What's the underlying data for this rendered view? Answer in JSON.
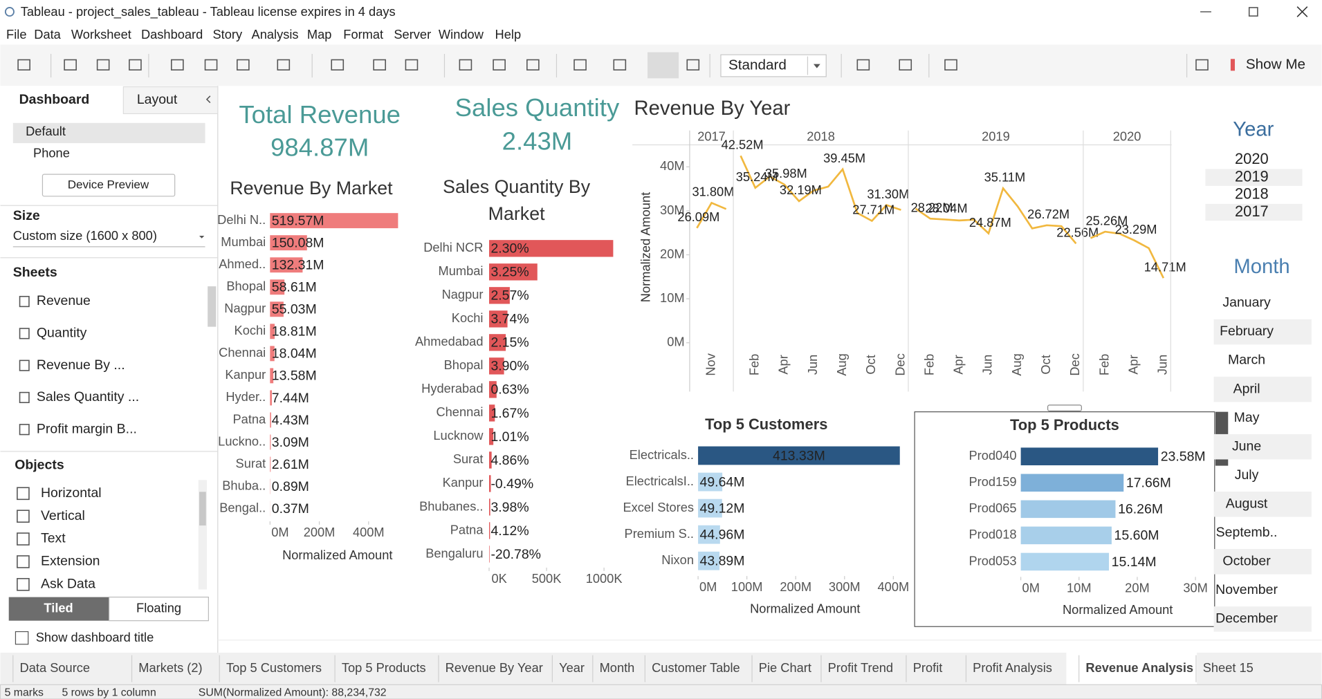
{
  "window": {
    "title": "Tableau - project_sales_tableau - Tableau license expires in 4 days"
  },
  "menu": [
    "File",
    "Data",
    "Worksheet",
    "Dashboard",
    "Story",
    "Analysis",
    "Map",
    "Format",
    "Server",
    "Window",
    "Help"
  ],
  "toolbar": {
    "fit": "Standard",
    "show_me": "Show Me"
  },
  "sidebar": {
    "tabs": [
      "Dashboard",
      "Layout"
    ],
    "devices": [
      "Default",
      "Phone"
    ],
    "device_preview": "Device Preview",
    "size_heading": "Size",
    "size": "Custom size (1600 x 800)",
    "sheets_heading": "Sheets",
    "sheets": [
      "Revenue",
      "Quantity",
      "Revenue By ...",
      "Sales Quantity ...",
      "Profit margin B..."
    ],
    "objects_heading": "Objects",
    "objects": [
      "Horizontal",
      "Vertical",
      "Text",
      "Extension",
      "Ask Data"
    ],
    "layout_modes": [
      "Tiled",
      "Floating"
    ],
    "show_title": "Show dashboard title"
  },
  "kpis": [
    {
      "title": "Total Revenue",
      "value": "984.87M"
    },
    {
      "title": "Sales Quantity",
      "value": "2.43M"
    }
  ],
  "chart_data": [
    {
      "type": "bar",
      "title": "Revenue By Market",
      "categories": [
        "Delhi N..",
        "Mumbai",
        "Ahmed..",
        "Bhopal",
        "Nagpur",
        "Kochi",
        "Chennai",
        "Kanpur",
        "Hyder..",
        "Patna",
        "Luckno..",
        "Surat",
        "Bhuba..",
        "Bengal.."
      ],
      "values": [
        519.57,
        150.08,
        132.31,
        58.61,
        55.03,
        18.81,
        18.04,
        13.58,
        7.44,
        4.43,
        3.09,
        2.61,
        0.89,
        0.37
      ],
      "value_labels": [
        "519.57M",
        "150.08M",
        "132.31M",
        "58.61M",
        "55.03M",
        "18.81M",
        "18.04M",
        "13.58M",
        "7.44M",
        "4.43M",
        "3.09M",
        "2.61M",
        "0.89M",
        "0.37M"
      ],
      "color": "#ef7c7c",
      "xlim": [
        0,
        530
      ],
      "xticks": [
        {
          "value": 0,
          "label": "0M"
        },
        {
          "value": 200,
          "label": "200M"
        },
        {
          "value": 400,
          "label": "400M"
        }
      ],
      "xlabel": "Normalized Amount"
    },
    {
      "type": "bar",
      "title": "Sales Quantity By Market",
      "categories": [
        "Delhi NCR",
        "Mumbai",
        "Nagpur",
        "Kochi",
        "Ahmedabad",
        "Bhopal",
        "Hyderabad",
        "Chennai",
        "Lucknow",
        "Surat",
        "Kanpur",
        "Bhubanes..",
        "Patna",
        "Bengaluru"
      ],
      "values": [
        1080,
        420,
        180,
        160,
        145,
        130,
        65,
        50,
        37,
        22,
        15,
        10,
        8,
        4
      ],
      "labels": [
        "2.30%",
        "3.25%",
        "2.57%",
        "3.74%",
        "2.15%",
        "3.90%",
        "0.63%",
        "1.67%",
        "1.01%",
        "4.86%",
        "-0.49%",
        "3.98%",
        "4.12%",
        "-20.78%"
      ],
      "color": "#e15759",
      "xlim": [
        0,
        1100
      ],
      "xticks": [
        {
          "value": 0,
          "label": "0K"
        },
        {
          "value": 500,
          "label": "500K"
        },
        {
          "value": 1000,
          "label": "1000K"
        }
      ]
    },
    {
      "type": "line",
      "title": "Revenue By Year",
      "ylabel": "Normalized Amount",
      "color": "#f1b83f",
      "ylim": [
        0,
        45
      ],
      "yticks": [
        {
          "value": 0,
          "label": "0M"
        },
        {
          "value": 10,
          "label": "10M"
        },
        {
          "value": 20,
          "label": "20M"
        },
        {
          "value": 30,
          "label": "30M"
        },
        {
          "value": 40,
          "label": "40M"
        }
      ],
      "panes": [
        {
          "year": "2017",
          "categories": [
            null,
            "Nov",
            null
          ],
          "values": [
            26.09,
            31.8,
            30.4
          ],
          "value_labels": [
            "26.09M",
            "31.80M",
            null
          ]
        },
        {
          "year": "2018",
          "categories": [
            null,
            "Feb",
            null,
            "Apr",
            null,
            "Jun",
            null,
            "Aug",
            null,
            "Oct",
            null,
            "Dec"
          ],
          "values": [
            42.52,
            35.24,
            37.8,
            35.98,
            32.19,
            34.6,
            35.5,
            39.45,
            29.5,
            27.71,
            31.3,
            30.2
          ],
          "value_labels": [
            "42.52M",
            "35.24M",
            null,
            "35.98M",
            "32.19M",
            null,
            null,
            "39.45M",
            null,
            "27.71M",
            "31.30M",
            null
          ]
        },
        {
          "year": "2019",
          "categories": [
            null,
            "Feb",
            null,
            "Apr",
            null,
            "Jun",
            null,
            "Aug",
            null,
            "Oct",
            null,
            "Dec"
          ],
          "values": [
            30.5,
            28.22,
            28.04,
            27.8,
            28.0,
            24.87,
            35.11,
            31.0,
            26.0,
            26.72,
            26.5,
            22.56
          ],
          "value_labels": [
            null,
            "28.22M",
            "28.04M",
            null,
            null,
            "24.87M",
            "35.11M",
            null,
            null,
            "26.72M",
            null,
            "22.56M"
          ]
        },
        {
          "year": "2020",
          "categories": [
            null,
            "Feb",
            null,
            "Apr",
            null,
            "Jun"
          ],
          "values": [
            23.8,
            25.26,
            24.8,
            23.29,
            21.5,
            14.71
          ],
          "value_labels": [
            null,
            "25.26M",
            null,
            "23.29M",
            null,
            "14.71M"
          ]
        }
      ]
    },
    {
      "type": "bar",
      "title": "Top 5 Customers",
      "categories": [
        "Electricals..",
        "ElectricalsI..",
        "Excel Stores",
        "Premium S..",
        "Nixon"
      ],
      "values": [
        413.33,
        49.64,
        49.12,
        44.96,
        43.89
      ],
      "value_labels": [
        "413.33M",
        "49.64M",
        "49.12M",
        "44.96M",
        "43.89M"
      ],
      "colors": [
        "#2a5783",
        "#b9d9ef",
        "#b9d9ef",
        "#b9d9ef",
        "#b9d9ef"
      ],
      "xlim": [
        0,
        435
      ],
      "xticks": [
        {
          "value": 0,
          "label": "0M"
        },
        {
          "value": 100,
          "label": "100M"
        },
        {
          "value": 200,
          "label": "200M"
        },
        {
          "value": 300,
          "label": "300M"
        },
        {
          "value": 400,
          "label": "400M"
        }
      ],
      "xlabel": "Normalized Amount"
    },
    {
      "type": "bar",
      "title": "Top 5 Products",
      "categories": [
        "Prod040",
        "Prod159",
        "Prod065",
        "Prod018",
        "Prod053"
      ],
      "values": [
        23.58,
        17.66,
        16.26,
        15.6,
        15.14
      ],
      "value_labels": [
        "23.58M",
        "17.66M",
        "16.26M",
        "15.60M",
        "15.14M"
      ],
      "colors": [
        "#2a5783",
        "#7eb0d9",
        "#a0c9e7",
        "#a8cfea",
        "#b0d5ee"
      ],
      "xlim": [
        0,
        33
      ],
      "xticks": [
        {
          "value": 0,
          "label": "0M"
        },
        {
          "value": 10,
          "label": "10M"
        },
        {
          "value": 20,
          "label": "20M"
        },
        {
          "value": 30,
          "label": "30M"
        }
      ],
      "xlabel": "Normalized Amount"
    }
  ],
  "filters": {
    "year": {
      "title": "Year",
      "items": [
        "2020",
        "2019",
        "2018",
        "2017"
      ]
    },
    "month": {
      "title": "Month",
      "items": [
        "January",
        "February",
        "March",
        "April",
        "May",
        "June",
        "July",
        "August",
        "Septemb..",
        "October",
        "November",
        "December"
      ]
    }
  },
  "tabs": [
    "Data Source",
    "Markets (2)",
    "Top 5 Customers",
    "Top 5 Products",
    "Revenue By Year",
    "Year",
    "Month",
    "Customer Table",
    "Pie Chart",
    "Profit Trend",
    "Profit",
    "Profit Analysis",
    "Revenue Analysis",
    "Sheet 15"
  ],
  "status": [
    "5 marks",
    "5 rows by 1 column",
    "SUM(Normalized Amount): 88,234,732"
  ]
}
